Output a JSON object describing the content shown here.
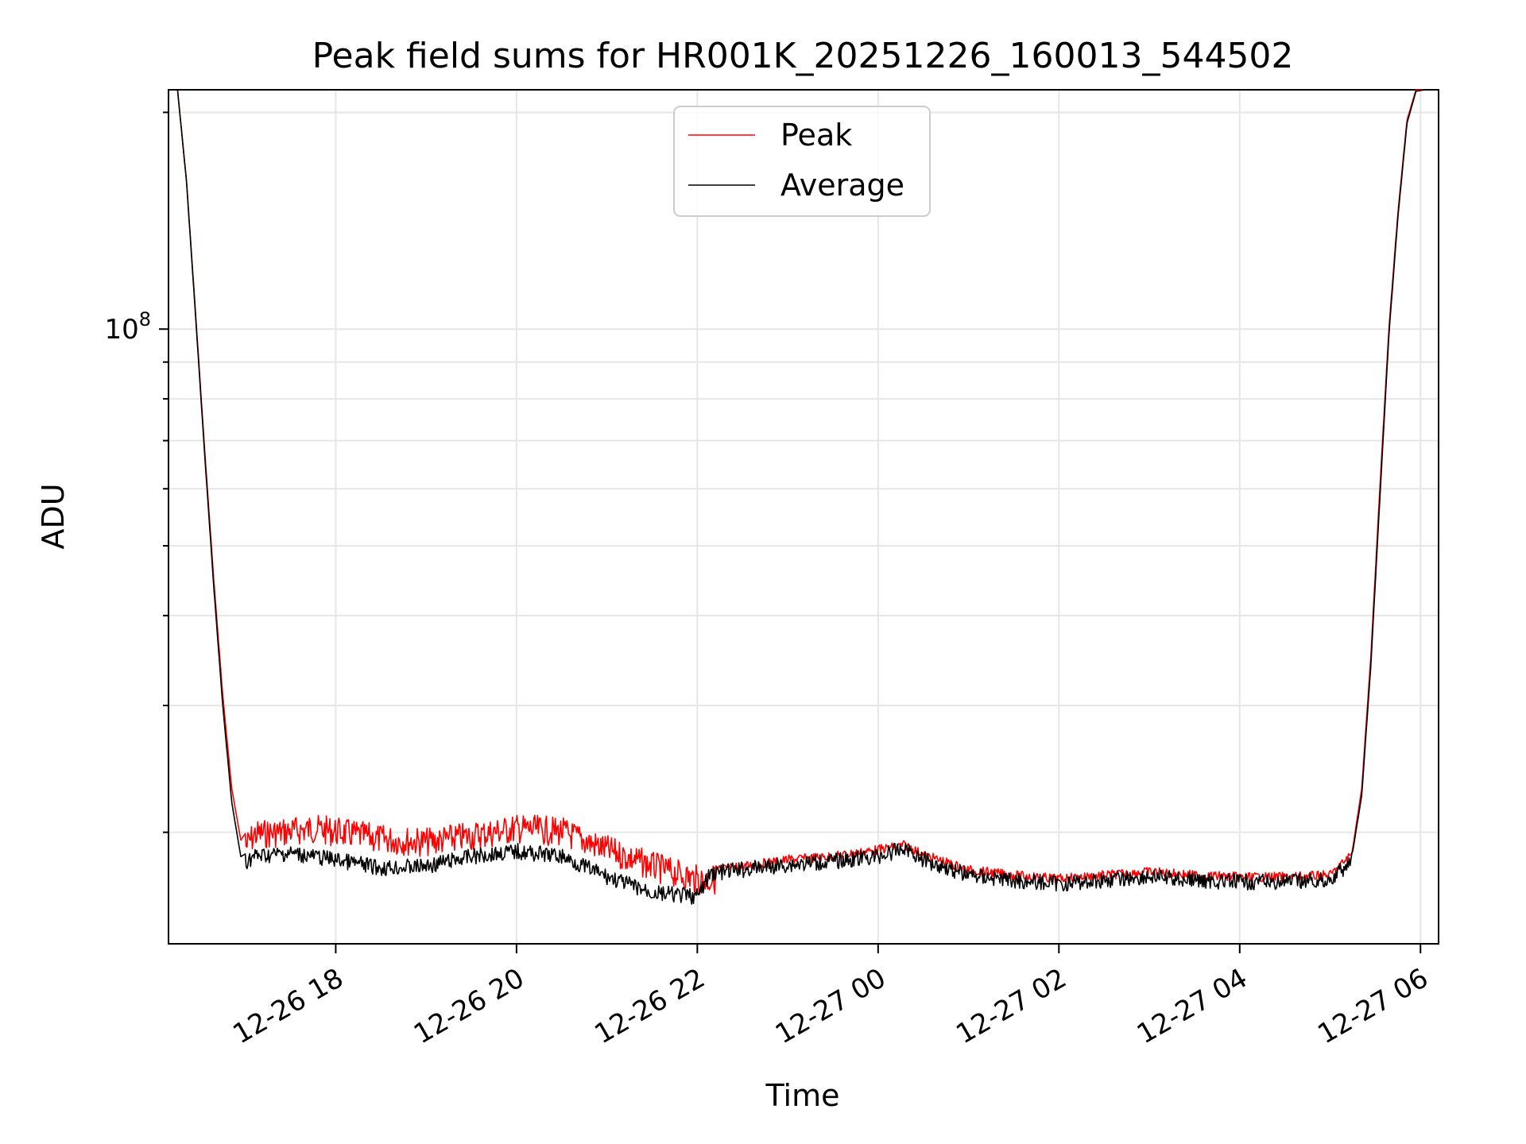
{
  "chart_data": {
    "type": "line",
    "title": "Peak field sums for HR001K_20251226_160013_544502",
    "xlabel": "Time",
    "ylabel": "ADU",
    "yscale": "log",
    "ylim": [
      14000000,
      215000000
    ],
    "xlim_hours": [
      16.15,
      30.2
    ],
    "x_tick_values_hours": [
      18,
      20,
      22,
      24,
      26,
      28,
      30
    ],
    "x_tick_labels": [
      "12-26 18",
      "12-26 20",
      "12-26 22",
      "12-27 00",
      "12-27 02",
      "12-27 04",
      "12-27 06"
    ],
    "y_tick_label_base": "10",
    "y_tick_label_exp": "8",
    "y_major_tick": 100000000,
    "y_minor_ticks": [
      20000000,
      30000000,
      40000000,
      50000000,
      60000000,
      70000000,
      80000000,
      90000000,
      200000000
    ],
    "grid": true,
    "legend": {
      "position": "top-center",
      "entries": [
        "Peak",
        "Average"
      ]
    },
    "series": [
      {
        "name": "Peak",
        "color": "#ff0000",
        "x_hours": [
          16.25,
          16.35,
          16.45,
          16.55,
          16.65,
          16.75,
          16.85,
          16.95,
          17.1,
          17.5,
          17.75,
          18.0,
          18.5,
          19.0,
          19.5,
          20.0,
          20.5,
          21.0,
          21.5,
          22.0,
          22.15,
          22.5,
          23.0,
          23.5,
          24.0,
          24.3,
          24.5,
          25.0,
          25.5,
          26.0,
          26.5,
          27.0,
          27.5,
          28.0,
          28.5,
          29.0,
          29.25,
          29.35,
          29.45,
          29.55,
          29.65,
          29.75,
          29.85,
          29.95,
          30.05
        ],
        "values": [
          215000000,
          160000000,
          105000000,
          68000000,
          45000000,
          31000000,
          23000000,
          19500000,
          20800000,
          21000000,
          21200000,
          21000000,
          20500000,
          20300000,
          20700000,
          21200000,
          21000000,
          19800000,
          18800000,
          18000000,
          18000000,
          18200000,
          18600000,
          18800000,
          19200000,
          19500000,
          18900000,
          18000000,
          17700000,
          17500000,
          17700000,
          17900000,
          17700000,
          17600000,
          17600000,
          17700000,
          19000000,
          23000000,
          35000000,
          60000000,
          100000000,
          145000000,
          195000000,
          215000000,
          215000000
        ]
      },
      {
        "name": "Average",
        "color": "#000000",
        "x_hours": [
          16.25,
          16.35,
          16.45,
          16.55,
          16.65,
          16.75,
          16.85,
          16.95,
          17.1,
          17.5,
          17.75,
          18.0,
          18.5,
          19.0,
          19.5,
          20.0,
          20.5,
          21.0,
          21.5,
          22.0,
          22.15,
          22.5,
          23.0,
          23.5,
          24.0,
          24.3,
          24.5,
          25.0,
          25.5,
          26.0,
          26.5,
          27.0,
          27.5,
          28.0,
          28.5,
          29.0,
          29.25,
          29.35,
          29.45,
          29.55,
          29.65,
          29.75,
          29.85,
          29.95,
          30.05
        ],
        "values": [
          215000000,
          160000000,
          104000000,
          67000000,
          44000000,
          30000000,
          22000000,
          18500000,
          19000000,
          19200000,
          19000000,
          18800000,
          18300000,
          18400000,
          19000000,
          19300000,
          19000000,
          17800000,
          16900000,
          16700000,
          18000000,
          18200000,
          18500000,
          18700000,
          19000000,
          19500000,
          18800000,
          17900000,
          17600000,
          17400000,
          17600000,
          17800000,
          17600000,
          17500000,
          17500000,
          17600000,
          18800000,
          22500000,
          34000000,
          58000000,
          98000000,
          143000000,
          193000000,
          214000000,
          215000000
        ]
      }
    ]
  }
}
